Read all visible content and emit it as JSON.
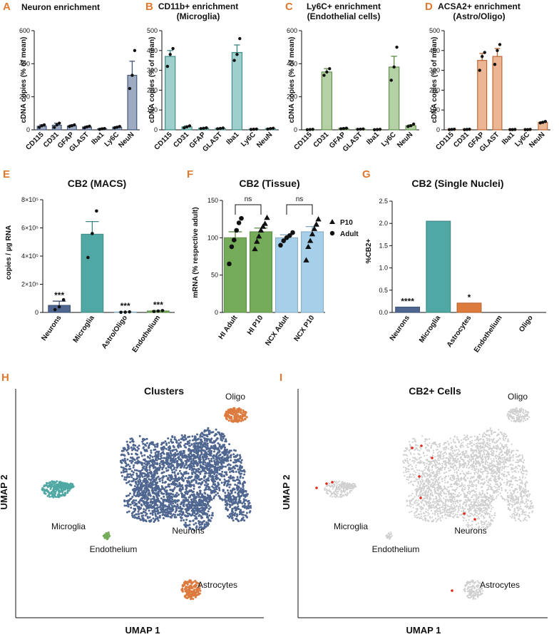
{
  "colors": {
    "navy": "#4f6690",
    "teal": "#4fa8a3",
    "green": "#74ac5a",
    "orange": "#dd7a3e",
    "lightblue": "#a6cfe9",
    "panel_label": "#e0782f",
    "grey": "#cfcfcf",
    "red": "#e0291d"
  },
  "chart_data": [
    {
      "panel": "A",
      "type": "bar",
      "title": "Neuron enrichment",
      "ylabel": "cDNA copies (% of mean)",
      "ylim": [
        0,
        600
      ],
      "yticks": [
        "0",
        "200",
        "400",
        "600"
      ],
      "categories": [
        "CD115",
        "CD31",
        "GFAP",
        "GLAST",
        "Iba1",
        "Ly6C",
        "NeuN"
      ],
      "values": [
        22,
        28,
        24,
        17,
        6,
        16,
        330
      ],
      "errors": [
        8,
        12,
        6,
        5,
        3,
        4,
        85
      ],
      "points": [
        [
          15,
          25,
          30
        ],
        [
          15,
          30,
          40
        ],
        [
          20,
          25,
          30
        ],
        [
          12,
          18,
          22
        ],
        [
          3,
          6,
          8
        ],
        [
          12,
          16,
          20
        ],
        [
          250,
          330,
          480
        ]
      ],
      "color": "navy"
    },
    {
      "panel": "B",
      "type": "bar",
      "title": "CD11b+ enrichment (Microglia)",
      "title_lines": [
        "CD11b+ enrichment",
        "(Microglia)"
      ],
      "ylabel": "cDNA copies (% of mean)",
      "ylim": [
        0,
        500
      ],
      "yticks": [
        "0",
        "100",
        "200",
        "300",
        "400",
        "500"
      ],
      "categories": [
        "CD115",
        "CD31",
        "GFAP",
        "GLAST",
        "Iba1",
        "Ly6C",
        "NeuN"
      ],
      "values": [
        370,
        15,
        8,
        7,
        390,
        3,
        6
      ],
      "errors": [
        30,
        5,
        2,
        2,
        38,
        1,
        2
      ],
      "points": [
        [
          320,
          380,
          410
        ],
        [
          10,
          15,
          20
        ],
        [
          6,
          8,
          10
        ],
        [
          5,
          7,
          9
        ],
        [
          350,
          380,
          460
        ],
        [
          2,
          3,
          4
        ],
        [
          4,
          6,
          8
        ]
      ],
      "color": "teal"
    },
    {
      "panel": "C",
      "type": "bar",
      "title": "Ly6C+ enrichment (Endothelial cells)",
      "title_lines": [
        "Ly6C+ enrichment",
        "(Endothelial cells)"
      ],
      "ylabel": "cDNA copies (% of mean)",
      "ylim": [
        0,
        600
      ],
      "yticks": [
        "0",
        "200",
        "400",
        "600"
      ],
      "categories": [
        "CD115",
        "CD31",
        "GFAP",
        "GLAST",
        "Iba1",
        "Ly6C",
        "NeuN"
      ],
      "values": [
        2,
        350,
        8,
        4,
        2,
        380,
        25
      ],
      "errors": [
        1,
        20,
        2,
        1,
        1,
        65,
        5
      ],
      "points": [
        [
          1,
          2,
          3
        ],
        [
          330,
          350,
          370
        ],
        [
          6,
          8,
          10
        ],
        [
          3,
          4,
          5
        ],
        [
          1,
          2,
          3
        ],
        [
          300,
          380,
          500
        ],
        [
          20,
          25,
          35
        ]
      ],
      "color": "green"
    },
    {
      "panel": "D",
      "type": "bar",
      "title": "ACSA2+ enrichment (Astro/Oligo)",
      "title_lines": [
        "ACSA2+ enrichment",
        "(Astro/Oligo)"
      ],
      "ylabel": "cDNA copies (% of mean)",
      "ylim": [
        0,
        500
      ],
      "yticks": [
        "0",
        "100",
        "200",
        "300",
        "400",
        "500"
      ],
      "categories": [
        "CD115",
        "CD31",
        "GFAP",
        "GLAST",
        "Iba1",
        "Ly6C",
        "NeuN"
      ],
      "values": [
        2,
        2,
        350,
        370,
        1,
        1,
        38
      ],
      "errors": [
        1,
        1,
        35,
        40,
        1,
        1,
        3
      ],
      "points": [
        [
          1,
          2,
          3
        ],
        [
          1,
          2,
          3
        ],
        [
          300,
          370,
          390
        ],
        [
          330,
          400,
          430
        ],
        [
          1,
          1,
          2
        ],
        [
          1,
          1,
          2
        ],
        [
          35,
          38,
          42
        ]
      ],
      "color": "orange"
    },
    {
      "panel": "E",
      "type": "bar",
      "title": "CB2 (MACS)",
      "ylabel": "copies / µg RNA",
      "ylim": [
        0,
        800000
      ],
      "yticks": [
        "0",
        "2×10⁵",
        "4×10⁵",
        "6×10⁵",
        "8×10⁵"
      ],
      "categories": [
        "Neurons",
        "Microglia",
        "Astro/Oligo",
        "Endothelium"
      ],
      "values": [
        50000,
        555000,
        3000,
        10000
      ],
      "errors": [
        30000,
        90000,
        2000,
        3000
      ],
      "points": [
        [
          20000,
          40000,
          90000
        ],
        [
          390000,
          560000,
          720000
        ],
        [
          1000,
          2000,
          4000
        ],
        [
          7000,
          10000,
          13000
        ]
      ],
      "significance": [
        "***",
        "",
        "***",
        "***"
      ],
      "colors": [
        "navy",
        "teal",
        "lightblue",
        "green"
      ]
    },
    {
      "panel": "F",
      "type": "bar",
      "title": "CB2 (Tissue)",
      "ylabel": "mRNA (% respective adult)",
      "ylim": [
        0,
        150
      ],
      "yticks": [
        "0",
        "50",
        "100",
        "150"
      ],
      "categories": [
        "HI Adult",
        "HI P10",
        "NCX Adult",
        "NCX P10"
      ],
      "values": [
        100,
        108,
        100,
        108
      ],
      "errors": [
        8,
        5,
        4,
        7
      ],
      "points": [
        [
          65,
          88,
          97,
          110,
          120,
          126
        ],
        [
          85,
          95,
          102,
          110,
          115,
          119,
          127
        ],
        [
          90,
          96,
          100,
          103,
          107
        ],
        [
          70,
          88,
          96,
          105,
          112,
          118,
          125
        ]
      ],
      "point_groups": [
        "Adult",
        "P10",
        "Adult",
        "P10"
      ],
      "comparisons": [
        {
          "pair": [
            "HI Adult",
            "HI P10"
          ],
          "label": "ns"
        },
        {
          "pair": [
            "NCX Adult",
            "NCX P10"
          ],
          "label": "ns"
        }
      ],
      "legend": [
        {
          "marker": "triangle",
          "label": "P10"
        },
        {
          "marker": "circle",
          "label": "Adult"
        }
      ],
      "colors": [
        "green",
        "green",
        "lightblue",
        "lightblue"
      ]
    },
    {
      "panel": "G",
      "type": "bar",
      "title": "CB2 (Single Nuclei)",
      "ylabel": "%CB2+",
      "ylim": [
        0,
        2.5
      ],
      "yticks": [
        "0.0",
        "0.5",
        "1.0",
        "1.5",
        "2.0",
        "2.5"
      ],
      "categories": [
        "Neurons",
        "Microglia",
        "Astrocytes",
        "Endothelium",
        "Oligo"
      ],
      "values": [
        0.12,
        2.05,
        0.21,
        0,
        0
      ],
      "significance": [
        "****",
        "",
        "*",
        "",
        ""
      ],
      "colors": [
        "navy",
        "teal",
        "orange",
        "grey",
        "grey"
      ]
    },
    {
      "panel": "H",
      "type": "scatter",
      "title": "Clusters",
      "xlabel": "UMAP 1",
      "ylabel": "UMAP 2",
      "clusters": [
        {
          "label": "Oligo",
          "color": "orange"
        },
        {
          "label": "Microglia",
          "color": "teal"
        },
        {
          "label": "Neurons",
          "color": "navy"
        },
        {
          "label": "Endothelium",
          "color": "green"
        },
        {
          "label": "Astrocytes",
          "color": "orange"
        }
      ]
    },
    {
      "panel": "I",
      "type": "scatter",
      "title": "CB2+ Cells",
      "xlabel": "UMAP 1",
      "ylabel": "UMAP 2",
      "clusters": [
        {
          "label": "Oligo"
        },
        {
          "label": "Microglia"
        },
        {
          "label": "Neurons"
        },
        {
          "label": "Endothelium"
        },
        {
          "label": "Astrocytes"
        }
      ],
      "highlight_color": "red"
    }
  ]
}
